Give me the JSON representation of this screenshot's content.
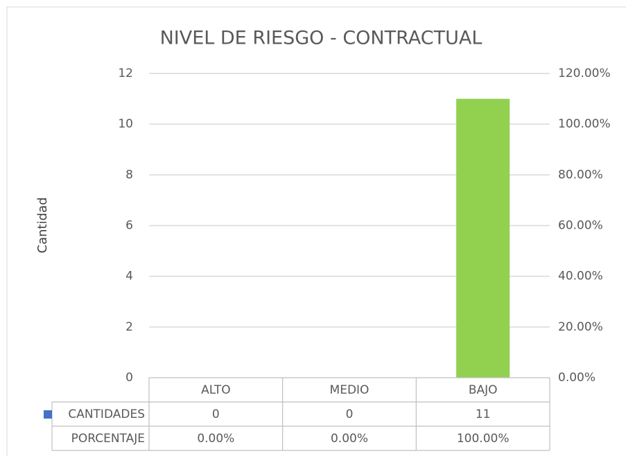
{
  "chart_data": {
    "type": "bar",
    "title": "NIVEL DE RIESGO - CONTRACTUAL",
    "y_label": "Cantidad",
    "categories": [
      "ALTO",
      "MEDIO",
      "BAJO"
    ],
    "series": [
      {
        "name": "CANTIDADES",
        "color": "#4472c4",
        "point_colors": [
          "#4472c4",
          "#4472c4",
          "#92d050"
        ],
        "values": [
          0,
          0,
          11
        ]
      },
      {
        "name": "PORCENTAJE",
        "axis": "y2",
        "values": [
          0,
          0,
          100
        ],
        "value_labels": [
          "0.00%",
          "0.00%",
          "100.00%"
        ]
      }
    ],
    "ylim": [
      0,
      12
    ],
    "yticks": [
      0,
      2,
      4,
      6,
      8,
      10,
      12
    ],
    "y2lim": [
      0,
      120
    ],
    "y2ticks": [
      {
        "value": 0,
        "label": "0.00%"
      },
      {
        "value": 20,
        "label": "20.00%"
      },
      {
        "value": 40,
        "label": "40.00%"
      },
      {
        "value": 60,
        "label": "60.00%"
      },
      {
        "value": 80,
        "label": "80.00%"
      },
      {
        "value": 100,
        "label": "100.00%"
      },
      {
        "value": 120,
        "label": "120.00%"
      }
    ],
    "grid": true,
    "data_table": true
  }
}
